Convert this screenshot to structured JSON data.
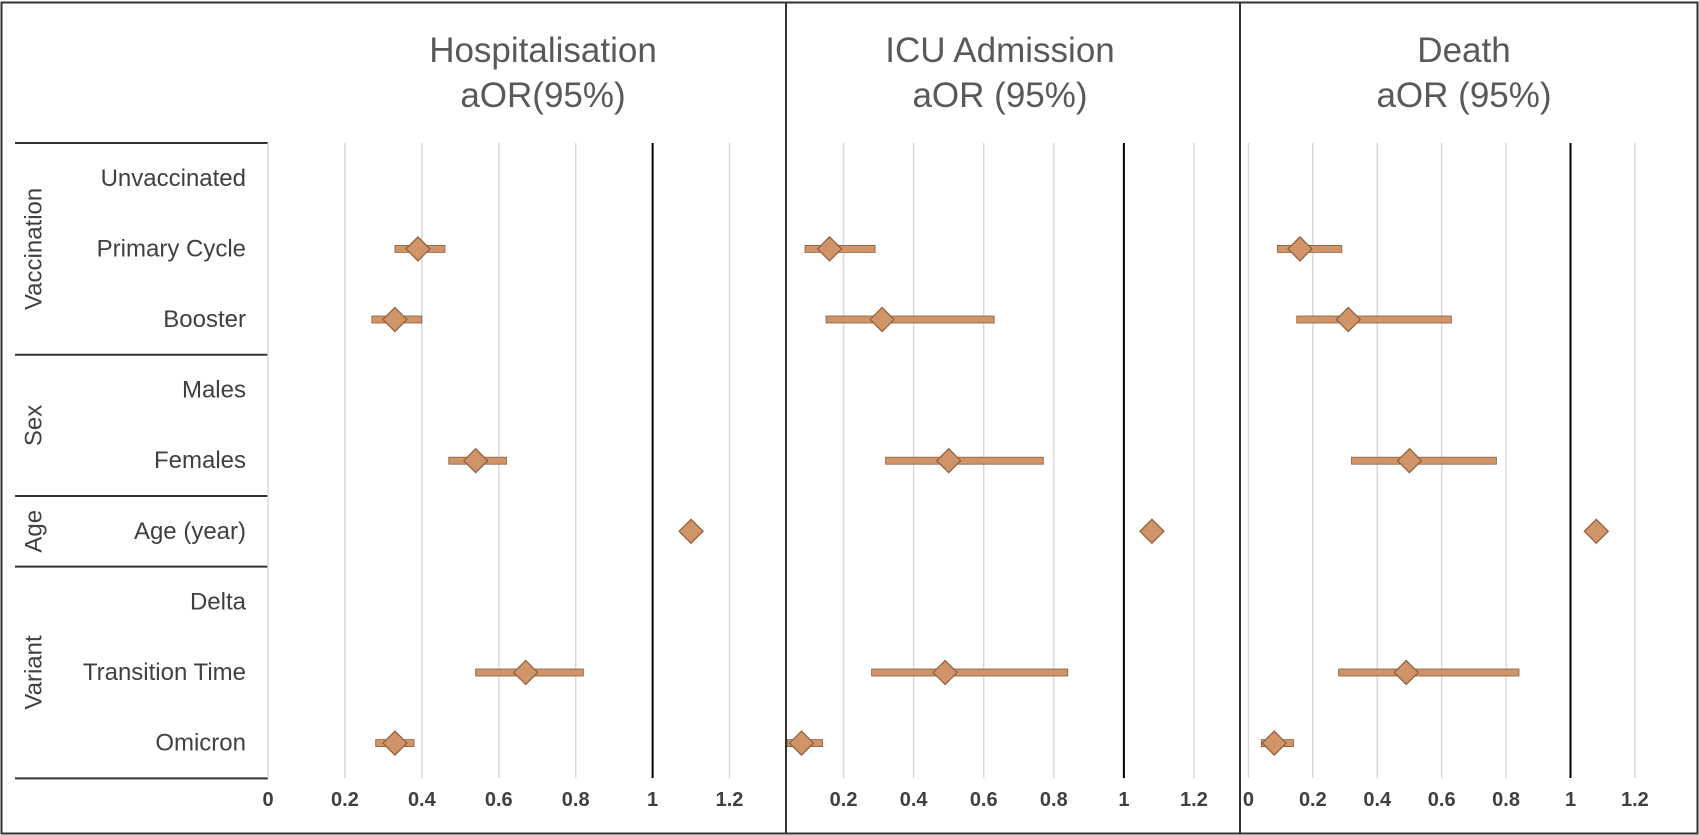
{
  "chart_data": {
    "type": "forest",
    "groups": [
      {
        "label": "Vaccination",
        "rows": [
          "Unvaccinated",
          "Primary Cycle",
          "Booster"
        ]
      },
      {
        "label": "Sex",
        "rows": [
          "Males",
          "Females"
        ]
      },
      {
        "label": "Age",
        "rows": [
          "Age (year)"
        ]
      },
      {
        "label": "Variant",
        "rows": [
          "Delta",
          "Transition Time",
          "Omicron"
        ]
      }
    ],
    "panels": [
      {
        "title_line1": "Hospitalisation",
        "title_line2": "aOR(95%)",
        "xticks": [
          "0",
          "0.2",
          "0.4",
          "0.6",
          "0.8",
          "1",
          "1.2"
        ],
        "xlim": [
          0,
          1.3
        ],
        "reference": 1,
        "points": [
          {
            "row": "Unvaccinated",
            "estimate": null
          },
          {
            "row": "Primary Cycle",
            "estimate": 0.39,
            "lower": 0.33,
            "upper": 0.46
          },
          {
            "row": "Booster",
            "estimate": 0.33,
            "lower": 0.27,
            "upper": 0.4
          },
          {
            "row": "Males",
            "estimate": null
          },
          {
            "row": "Females",
            "estimate": 0.54,
            "lower": 0.47,
            "upper": 0.62
          },
          {
            "row": "Age (year)",
            "estimate": 1.1,
            "lower": 1.09,
            "upper": 1.11
          },
          {
            "row": "Delta",
            "estimate": null
          },
          {
            "row": "Transition Time",
            "estimate": 0.67,
            "lower": 0.54,
            "upper": 0.82
          },
          {
            "row": "Omicron",
            "estimate": 0.33,
            "lower": 0.28,
            "upper": 0.38
          }
        ]
      },
      {
        "title_line1": "ICU Admission",
        "title_line2": "aOR (95%)",
        "xticks": [
          "0.2",
          "0.4",
          "0.6",
          "0.8",
          "1",
          "1.2"
        ],
        "xlim": [
          0.03,
          1.28
        ],
        "reference": 1,
        "points": [
          {
            "row": "Unvaccinated",
            "estimate": null
          },
          {
            "row": "Primary Cycle",
            "estimate": 0.16,
            "lower": 0.09,
            "upper": 0.29
          },
          {
            "row": "Booster",
            "estimate": 0.31,
            "lower": 0.15,
            "upper": 0.63
          },
          {
            "row": "Males",
            "estimate": null
          },
          {
            "row": "Females",
            "estimate": 0.5,
            "lower": 0.32,
            "upper": 0.77
          },
          {
            "row": "Age (year)",
            "estimate": 1.08,
            "lower": 1.07,
            "upper": 1.09
          },
          {
            "row": "Delta",
            "estimate": null
          },
          {
            "row": "Transition Time",
            "estimate": 0.49,
            "lower": 0.28,
            "upper": 0.84
          },
          {
            "row": "Omicron",
            "estimate": 0.08,
            "lower": 0.04,
            "upper": 0.14
          }
        ]
      },
      {
        "title_line1": "Death",
        "title_line2": "aOR (95%)",
        "xticks": [
          "0",
          "0.2",
          "0.4",
          "0.6",
          "0.8",
          "1",
          "1.2"
        ],
        "xlim": [
          -0.02,
          1.34
        ],
        "reference": 1,
        "points": [
          {
            "row": "Unvaccinated",
            "estimate": null
          },
          {
            "row": "Primary Cycle",
            "estimate": 0.16,
            "lower": 0.09,
            "upper": 0.29
          },
          {
            "row": "Booster",
            "estimate": 0.31,
            "lower": 0.15,
            "upper": 0.63
          },
          {
            "row": "Males",
            "estimate": null
          },
          {
            "row": "Females",
            "estimate": 0.5,
            "lower": 0.32,
            "upper": 0.77
          },
          {
            "row": "Age (year)",
            "estimate": 1.08,
            "lower": 1.07,
            "upper": 1.09
          },
          {
            "row": "Delta",
            "estimate": null
          },
          {
            "row": "Transition Time",
            "estimate": 0.49,
            "lower": 0.28,
            "upper": 0.84
          },
          {
            "row": "Omicron",
            "estimate": 0.08,
            "lower": 0.04,
            "upper": 0.14
          }
        ]
      }
    ],
    "grid": true,
    "legend": "none",
    "colors": {
      "marker": "#D19468",
      "marker_edge": "#8C5E3C",
      "ci_bar": "#D19468",
      "gridline": "#D9D9D9",
      "reference_line": "#000000",
      "text": "#404040",
      "title": "#595959"
    }
  }
}
